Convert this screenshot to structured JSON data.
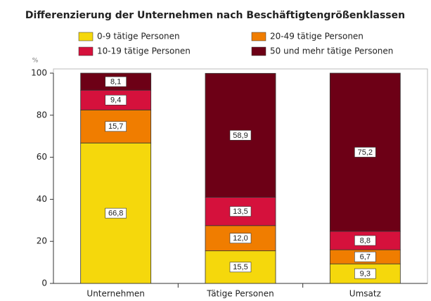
{
  "chart_data": {
    "type": "stacked_bar",
    "title": "Differenzierung der Unternehmen nach Beschäftigtengrößenklassen",
    "y_label": "%",
    "categories": [
      "Unternehmen",
      "Tätige Personen",
      "Umsatz"
    ],
    "series": [
      {
        "name": "0-9 tätige Personen",
        "color": "#f5d80c",
        "values": [
          66.8,
          15.5,
          9.3
        ],
        "value_labels": [
          "66,8",
          "15,5",
          "9,3"
        ]
      },
      {
        "name": "20-49 tätige Personen",
        "color": "#f07d00",
        "values": [
          15.7,
          12.0,
          6.7
        ],
        "value_labels": [
          "15,7",
          "12,0",
          "6,7"
        ]
      },
      {
        "name": "10-19 tätige Personen",
        "color": "#d5113c",
        "values": [
          9.4,
          13.5,
          8.8
        ],
        "value_labels": [
          "9,4",
          "13,5",
          "8,8"
        ]
      },
      {
        "name": "50 und mehr tätige Personen",
        "color": "#6d0016",
        "values": [
          8.1,
          58.9,
          75.2
        ],
        "value_labels": [
          "8,1",
          "58,9",
          "75,2"
        ]
      }
    ],
    "ylim": [
      0,
      100
    ],
    "yticks": [
      0,
      20,
      40,
      60,
      80,
      100
    ]
  }
}
